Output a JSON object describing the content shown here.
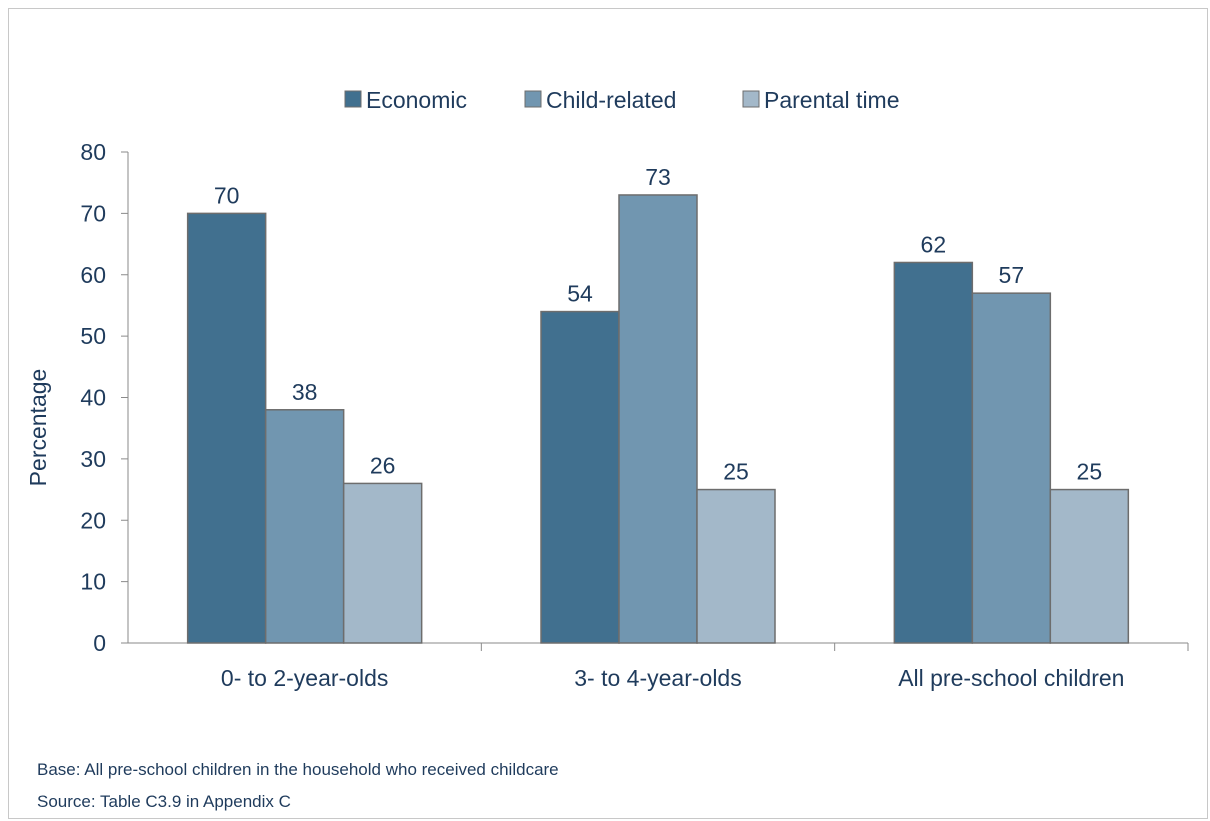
{
  "chart_data": {
    "type": "bar",
    "categories": [
      "0- to 2-year-olds",
      "3- to 4-year-olds",
      "All pre-school children"
    ],
    "series": [
      {
        "name": "Economic",
        "values": [
          70,
          54,
          62
        ],
        "color": "#41708f"
      },
      {
        "name": "Child-related",
        "values": [
          38,
          73,
          57
        ],
        "color": "#7196b0"
      },
      {
        "name": "Parental time",
        "values": [
          26,
          25,
          25
        ],
        "color": "#a3b8c9"
      }
    ],
    "title": "",
    "xlabel": "",
    "ylabel": "Percentage",
    "ylim": [
      0,
      80
    ],
    "yticks": [
      0,
      10,
      20,
      30,
      40,
      50,
      60,
      70,
      80
    ],
    "legend_position": "top",
    "grid": false,
    "data_labels": true
  },
  "footnotes": {
    "base": "Base: All pre-school children  in the household who received childcare",
    "source": "Source: Table C3.9 in Appendix C"
  },
  "colors": {
    "text": "#1f3b5c",
    "axis": "#8a8a8a",
    "bar_outline": "#6d6d6d"
  }
}
